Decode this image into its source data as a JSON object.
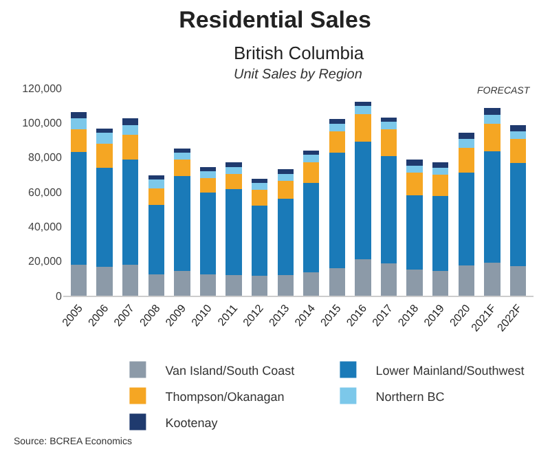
{
  "chart_data": {
    "type": "bar",
    "stacked": true,
    "title": "Residential Sales",
    "subtitle": "British Columbia",
    "annotations": [
      "Unit Sales by Region",
      "FORECAST",
      "Source: BCREA Economics"
    ],
    "categories": [
      "2005",
      "2006",
      "2007",
      "2008",
      "2009",
      "2010",
      "2011",
      "2012",
      "2013",
      "2014",
      "2015",
      "2016",
      "2017",
      "2018",
      "2019",
      "2020",
      "2021F",
      "2022F"
    ],
    "series": [
      {
        "name": "Van Island/South Coast",
        "color": "#8c9aa8",
        "values": [
          18000,
          16500,
          18000,
          12500,
          14500,
          12500,
          12000,
          11500,
          12000,
          13500,
          16000,
          21000,
          18500,
          15000,
          14500,
          17500,
          19000,
          17000
        ]
      },
      {
        "name": "Lower Mainland/Southwest",
        "color": "#1a7ab8",
        "values": [
          65000,
          57500,
          60500,
          40000,
          54500,
          47000,
          49500,
          40500,
          44000,
          51500,
          66500,
          68000,
          62000,
          43000,
          43000,
          53500,
          64500,
          59500
        ]
      },
      {
        "name": "Thompson/Okanagan",
        "color": "#f5a623",
        "values": [
          13000,
          14000,
          14500,
          9500,
          9500,
          8500,
          9000,
          9000,
          10500,
          12000,
          12500,
          16000,
          15500,
          13000,
          12500,
          14500,
          16000,
          14000
        ]
      },
      {
        "name": "Northern BC",
        "color": "#7cc8ea",
        "values": [
          6500,
          6000,
          5500,
          5000,
          4000,
          4000,
          4000,
          4000,
          4000,
          4500,
          4500,
          4500,
          4500,
          4000,
          4000,
          5000,
          5000,
          4500
        ]
      },
      {
        "name": "Kootenay",
        "color": "#1f3a6e",
        "values": [
          3500,
          2500,
          4000,
          2500,
          2500,
          2500,
          2500,
          2500,
          2500,
          2500,
          2500,
          2500,
          2500,
          3500,
          3000,
          3500,
          4000,
          3500
        ]
      }
    ],
    "ylim": [
      0,
      120000
    ],
    "yticks": [
      {
        "value": 0,
        "label": "0"
      },
      {
        "value": 20000,
        "label": "20,000"
      },
      {
        "value": 40000,
        "label": "40,000"
      },
      {
        "value": 60000,
        "label": "60,000"
      },
      {
        "value": 80000,
        "label": "80,000"
      },
      {
        "value": 100000,
        "label": "100,000"
      },
      {
        "value": 120000,
        "label": "120,000"
      }
    ],
    "legend": "bottom"
  }
}
